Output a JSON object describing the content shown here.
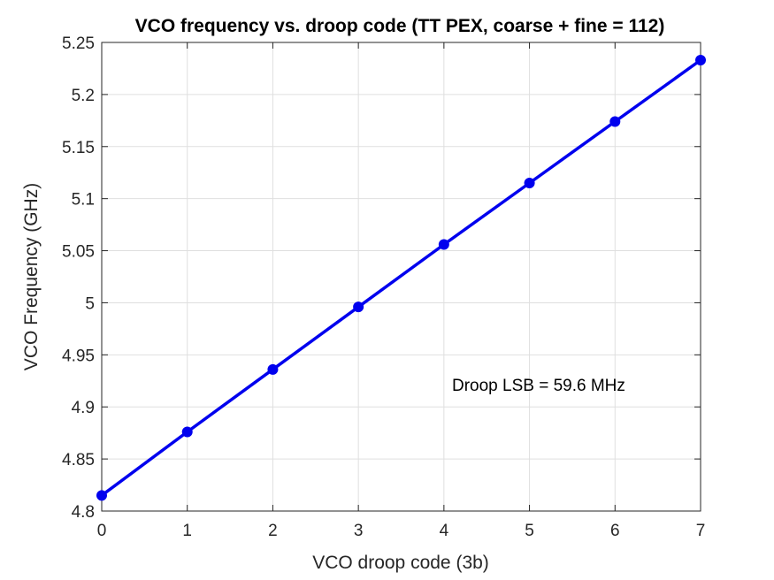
{
  "chart_data": {
    "type": "line",
    "title": "VCO frequency vs. droop code (TT PEX, coarse + fine = 112)",
    "xlabel": "VCO droop code (3b)",
    "ylabel": "VCO Frequency (GHz)",
    "xlim": [
      0,
      7
    ],
    "ylim": [
      4.8,
      5.25
    ],
    "xticks": [
      "0",
      "1",
      "2",
      "3",
      "4",
      "5",
      "6",
      "7"
    ],
    "yticks": [
      "4.8",
      "4.85",
      "4.9",
      "4.95",
      "5",
      "5.05",
      "5.1",
      "5.15",
      "5.2",
      "5.25"
    ],
    "grid": true,
    "series": [
      {
        "color": "#0000ee",
        "marker": "circle",
        "x": [
          0,
          1,
          2,
          3,
          4,
          5,
          6,
          7
        ],
        "y": [
          4.815,
          4.876,
          4.936,
          4.996,
          5.056,
          5.115,
          5.174,
          5.233
        ]
      }
    ],
    "annotation": "Droop LSB = 59.6 MHz"
  }
}
